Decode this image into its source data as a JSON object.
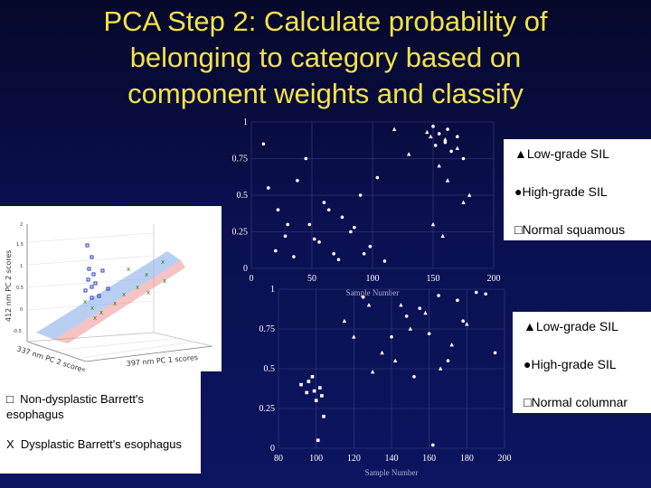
{
  "title": {
    "line1": "PCA Step 2: Calculate probability of",
    "line2": "belonging to category based on",
    "line3": "component weights and classify"
  },
  "colors": {
    "title": "#f2e24a",
    "background": "#0a1050",
    "points": "#ffffff"
  },
  "top_chart": {
    "y_ticks": [
      "0",
      "0.25",
      "0.5",
      "0.75",
      "1"
    ],
    "x_ticks": [
      "0",
      "50",
      "100",
      "150",
      "200"
    ],
    "xlabel": "Sample Number"
  },
  "top_legend": {
    "items": [
      {
        "symbol": "▲",
        "label": "Low-grade SIL"
      },
      {
        "symbol": "●",
        "label": "High-grade SIL"
      },
      {
        "symbol": "□",
        "label": "Normal squamous"
      }
    ]
  },
  "bottom_chart": {
    "y_ticks": [
      "0",
      "0.25",
      "0.5",
      "0.75",
      "1"
    ],
    "x_ticks": [
      "80",
      "100",
      "120",
      "140",
      "160",
      "180",
      "200"
    ],
    "xlabel": "Sample Number"
  },
  "bottom_legend": {
    "items": [
      {
        "symbol": "▲",
        "label": "Low-grade SIL"
      },
      {
        "symbol": "●",
        "label": "High-grade SIL"
      },
      {
        "symbol": "□",
        "label": "Normal columnar"
      }
    ]
  },
  "pca3d": {
    "ylabel": "412 nm PC 2 scores",
    "xlabel": "397 nm PC 1 scores",
    "zlabel": "337 nm PC 2 scores"
  },
  "caption": {
    "item1_symbol": "□",
    "item1_text": "Non-dysplastic Barrett's esophagus",
    "item2_symbol": "X",
    "item2_text": "Dysplastic Barrett's esophagus"
  },
  "chart_data": [
    {
      "type": "scatter",
      "title": "",
      "xlabel": "Sample Number",
      "ylabel": "",
      "xlim": [
        0,
        200
      ],
      "ylim": [
        0,
        1
      ],
      "legend": "right",
      "series": [
        {
          "name": "Low-grade SIL",
          "marker": "triangle",
          "x": [
            118,
            130,
            145,
            148,
            155,
            160,
            162,
            170,
            175,
            180,
            150,
            158
          ],
          "y": [
            0.95,
            0.78,
            0.93,
            0.9,
            0.7,
            0.88,
            0.6,
            0.82,
            0.45,
            0.5,
            0.3,
            0.22
          ]
        },
        {
          "name": "High-grade SIL",
          "marker": "circle",
          "x": [
            10,
            14,
            22,
            30,
            38,
            45,
            52,
            60,
            68,
            75,
            82,
            90,
            98,
            104,
            110,
            20,
            28,
            35,
            48,
            56,
            64,
            72,
            85,
            93,
            150,
            155,
            160,
            165,
            170,
            175,
            152,
            162
          ],
          "y": [
            0.85,
            0.55,
            0.4,
            0.3,
            0.6,
            0.75,
            0.2,
            0.45,
            0.1,
            0.35,
            0.25,
            0.5,
            0.15,
            0.62,
            0.05,
            0.12,
            0.22,
            0.08,
            0.3,
            0.18,
            0.4,
            0.06,
            0.28,
            0.1,
            0.97,
            0.92,
            0.86,
            0.8,
            0.9,
            0.75,
            0.84,
            0.95
          ]
        },
        {
          "name": "Normal squamous",
          "marker": "square",
          "x": [],
          "y": []
        }
      ]
    },
    {
      "type": "scatter",
      "title": "",
      "xlabel": "Sample Number",
      "ylabel": "",
      "xlim": [
        80,
        200
      ],
      "ylim": [
        0,
        1
      ],
      "legend": "right",
      "series": [
        {
          "name": "Low-grade SIL",
          "marker": "triangle",
          "x": [
            115,
            120,
            128,
            135,
            142,
            150,
            158,
            166,
            172,
            180,
            130,
            145
          ],
          "y": [
            0.8,
            0.7,
            0.9,
            0.6,
            0.55,
            0.75,
            0.85,
            0.5,
            0.65,
            0.78,
            0.48,
            0.9
          ]
        },
        {
          "name": "High-grade SIL",
          "marker": "circle",
          "x": [
            125,
            140,
            148,
            155,
            160,
            165,
            175,
            185,
            190,
            195,
            162,
            170,
            178,
            152
          ],
          "y": [
            0.95,
            0.7,
            0.83,
            0.88,
            0.72,
            0.96,
            0.93,
            0.98,
            0.97,
            0.6,
            0.02,
            0.55,
            0.8,
            0.45
          ]
        },
        {
          "name": "Normal columnar",
          "marker": "square",
          "x": [
            92,
            95,
            98,
            100,
            102,
            104,
            96,
            99,
            101,
            103
          ],
          "y": [
            0.4,
            0.35,
            0.45,
            0.3,
            0.38,
            0.2,
            0.42,
            0.36,
            0.05,
            0.33
          ]
        }
      ]
    }
  ]
}
